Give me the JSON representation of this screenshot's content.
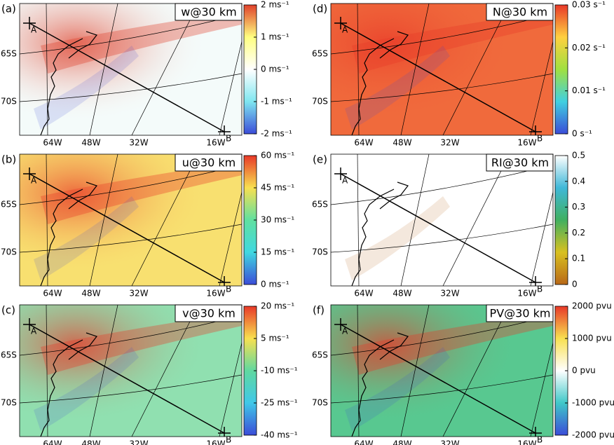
{
  "map": {
    "lat_labels": [
      "65S",
      "70S"
    ],
    "lon_labels": [
      "64W",
      "48W",
      "32W",
      "16W"
    ],
    "points": [
      "A",
      "B"
    ]
  },
  "panels": [
    {
      "label": "(a)",
      "title": "w@30 km",
      "colors": [
        "#3b4cd8",
        "#7fe6f0",
        "#ffffff",
        "#ffff80",
        "#e0402a"
      ],
      "base": "#f4fbfa",
      "colorbar": {
        "lim": [
          -2,
          2
        ],
        "ticks": [
          {
            "value": 2,
            "label": "2 ms⁻¹"
          },
          {
            "value": 1,
            "label": "1 ms⁻¹"
          },
          {
            "value": 0,
            "label": "0 ms⁻¹"
          },
          {
            "value": -1,
            "label": "-1 ms⁻¹"
          },
          {
            "value": -2,
            "label": "-2 ms⁻¹"
          }
        ]
      }
    },
    {
      "label": "(d)",
      "title": "N@30 km",
      "colors": [
        "#3b4cd8",
        "#40d0e0",
        "#a0e040",
        "#ffd040",
        "#e83828"
      ],
      "base": "#f06a3c",
      "colorbar": {
        "lim": [
          0,
          0.03
        ],
        "ticks": [
          {
            "value": 0.03,
            "label": "0.03 s⁻¹"
          },
          {
            "value": 0.02,
            "label": "0.02 s⁻¹"
          },
          {
            "value": 0.01,
            "label": "0.01 s⁻¹"
          },
          {
            "value": 0,
            "label": "0 s⁻¹"
          }
        ]
      }
    },
    {
      "label": "(b)",
      "title": "u@30 km",
      "colors": [
        "#3b4cd8",
        "#40d8e0",
        "#60e0a0",
        "#f8e050",
        "#e83828"
      ],
      "base": "#f8e070",
      "colorbar": {
        "lim": [
          0,
          60
        ],
        "ticks": [
          {
            "value": 60,
            "label": "60 ms⁻¹"
          },
          {
            "value": 45,
            "label": "45 ms⁻¹"
          },
          {
            "value": 30,
            "label": "30 ms⁻¹"
          },
          {
            "value": 15,
            "label": "15 ms⁻¹"
          },
          {
            "value": 0,
            "label": "0 ms⁻¹"
          }
        ]
      }
    },
    {
      "label": "(e)",
      "title": "RI@30 km",
      "colors": [
        "#b86818",
        "#d8c020",
        "#40b060",
        "#40b8d8",
        "#ffffff"
      ],
      "base": "#ffffff",
      "colorbar": {
        "lim": [
          0,
          0.5
        ],
        "ticks": [
          0.5,
          0.4,
          0.3,
          0.2,
          0.1,
          0
        ]
      }
    },
    {
      "label": "(c)",
      "title": "v@30 km",
      "colors": [
        "#3b4cd8",
        "#40c8e8",
        "#60d8a0",
        "#f8e050",
        "#e83828"
      ],
      "base": "#90e0b0",
      "colorbar": {
        "lim": [
          -40,
          20
        ],
        "ticks": [
          {
            "value": 20,
            "label": "20 ms⁻¹"
          },
          {
            "value": 5,
            "label": "5 ms⁻¹"
          },
          {
            "value": -10,
            "label": "-10 ms⁻¹"
          },
          {
            "value": -25,
            "label": "-25 ms⁻¹"
          },
          {
            "value": -40,
            "label": "-40 ms⁻¹"
          }
        ]
      }
    },
    {
      "label": "(f)",
      "title": "PV@30 km",
      "colors": [
        "#3b4cd8",
        "#40c8c8",
        "#ffffff",
        "#f8e050",
        "#e83828"
      ],
      "base": "#58c890",
      "colorbar": {
        "lim": [
          -2000,
          2000
        ],
        "ticks": [
          {
            "value": 2000,
            "label": "2000 pvu"
          },
          {
            "value": 1000,
            "label": "1000 pvu"
          },
          {
            "value": 0,
            "label": "0 pvu"
          },
          {
            "value": -1000,
            "label": "-1000 pvu"
          },
          {
            "value": -2000,
            "label": "-2000 pvu"
          }
        ]
      }
    }
  ]
}
